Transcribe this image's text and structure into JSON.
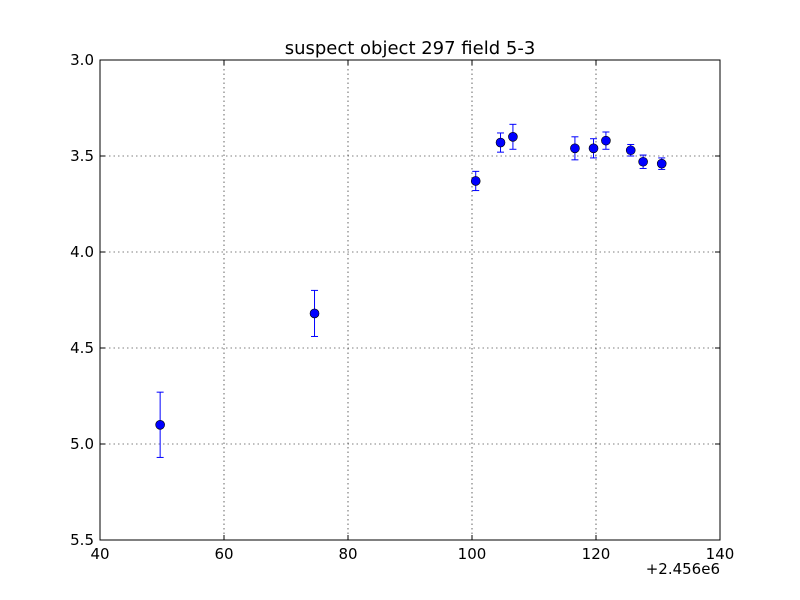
{
  "chart_data": {
    "type": "scatter",
    "title": "suspect object 297 field 5-3",
    "xlabel": "",
    "ylabel": "",
    "x_offset_label": "+2.456e6",
    "x_offset": 2456000,
    "xlim": [
      40,
      140
    ],
    "ylim": [
      3.0,
      5.5
    ],
    "y_inverted": true,
    "x_ticks": [
      40,
      60,
      80,
      100,
      120,
      140
    ],
    "x_tick_labels": [
      "40",
      "60",
      "80",
      "100",
      "120",
      "140"
    ],
    "y_ticks": [
      3.0,
      3.5,
      4.0,
      4.5,
      5.0,
      5.5
    ],
    "y_tick_labels": [
      "3.0",
      "3.5",
      "4.0",
      "4.5",
      "5.0",
      "5.5"
    ],
    "grid": true,
    "marker_color": "#0000ff",
    "error_color": "#0000ff",
    "series": [
      {
        "points": [
          {
            "x": 49.7,
            "y": 4.9,
            "err": 0.17
          },
          {
            "x": 74.6,
            "y": 4.32,
            "err": 0.12
          },
          {
            "x": 100.6,
            "y": 3.63,
            "err": 0.05
          },
          {
            "x": 104.6,
            "y": 3.43,
            "err": 0.05
          },
          {
            "x": 106.6,
            "y": 3.4,
            "err": 0.065
          },
          {
            "x": 116.6,
            "y": 3.46,
            "err": 0.06
          },
          {
            "x": 119.6,
            "y": 3.46,
            "err": 0.05
          },
          {
            "x": 121.6,
            "y": 3.42,
            "err": 0.045
          },
          {
            "x": 125.6,
            "y": 3.47,
            "err": 0.03
          },
          {
            "x": 127.6,
            "y": 3.53,
            "err": 0.035
          },
          {
            "x": 130.6,
            "y": 3.54,
            "err": 0.03
          }
        ]
      }
    ]
  }
}
